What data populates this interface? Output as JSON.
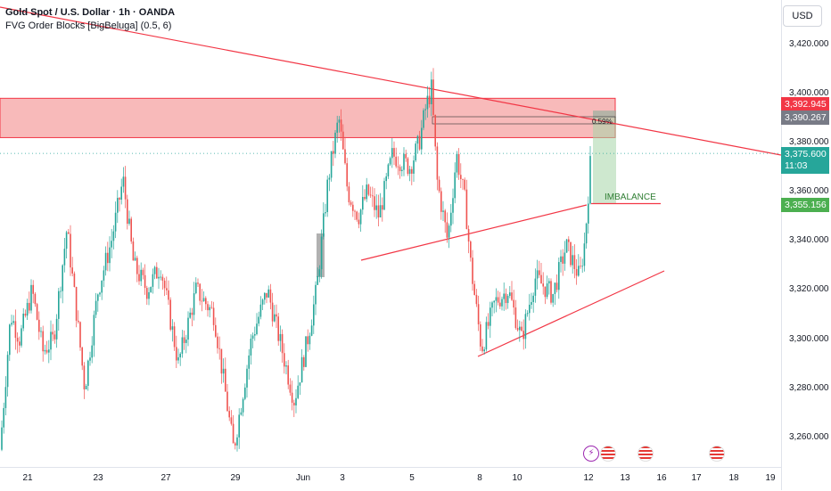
{
  "header": {
    "title": "Gold Spot / U.S. Dollar · 1h · OANDA",
    "indicator": "FVG Order Blocks [BigBeluga] (0.5, 6)"
  },
  "currency_button": "USD",
  "annotations": {
    "imbalance": "IMBALANCE",
    "pct": "0.59%"
  },
  "price_tags": {
    "red": "3,392.945",
    "gray": "3,390.267",
    "last_price": "3,375.600",
    "countdown": "11:03",
    "green": "3,355.156"
  },
  "colors": {
    "up": "#26a69a",
    "down": "#ef5350",
    "zone": "#f5a3a3",
    "tp_zone": "#a5d6a7",
    "trendline": "#f23645"
  },
  "icons": [
    "lightning-icon",
    "us-flag-icon",
    "us-flag-icon",
    "us-flag-icon"
  ],
  "chart_data": {
    "type": "candlestick",
    "title": "Gold Spot / U.S. Dollar · 1h · OANDA",
    "y_ticks": [
      "3,420.000",
      "3,400.000",
      "3,380.000",
      "3,360.000",
      "3,340.000",
      "3,320.000",
      "3,300.000",
      "3,280.000",
      "3,260.000"
    ],
    "x_ticks": [
      "21",
      "23",
      "27",
      "29",
      "Jun",
      "3",
      "5",
      "8",
      "10",
      "12",
      "13",
      "16",
      "17",
      "18",
      "19"
    ],
    "ylim": [
      3248,
      3438
    ],
    "path": [
      [
        0,
        3255
      ],
      [
        12,
        3310
      ],
      [
        22,
        3300
      ],
      [
        36,
        3320
      ],
      [
        48,
        3295
      ],
      [
        60,
        3300
      ],
      [
        75,
        3345
      ],
      [
        86,
        3310
      ],
      [
        95,
        3280
      ],
      [
        110,
        3320
      ],
      [
        125,
        3340
      ],
      [
        138,
        3365
      ],
      [
        150,
        3330
      ],
      [
        165,
        3320
      ],
      [
        180,
        3330
      ],
      [
        200,
        3290
      ],
      [
        220,
        3320
      ],
      [
        240,
        3310
      ],
      [
        262,
        3255
      ],
      [
        282,
        3300
      ],
      [
        300,
        3320
      ],
      [
        320,
        3290
      ],
      [
        330,
        3275
      ],
      [
        345,
        3300
      ],
      [
        355,
        3320
      ],
      [
        368,
        3365
      ],
      [
        380,
        3390
      ],
      [
        390,
        3360
      ],
      [
        402,
        3350
      ],
      [
        412,
        3360
      ],
      [
        425,
        3350
      ],
      [
        440,
        3375
      ],
      [
        460,
        3370
      ],
      [
        470,
        3380
      ],
      [
        478,
        3395
      ],
      [
        484,
        3402
      ],
      [
        490,
        3365
      ],
      [
        502,
        3340
      ],
      [
        512,
        3375
      ],
      [
        522,
        3355
      ],
      [
        528,
        3330
      ],
      [
        540,
        3296
      ],
      [
        555,
        3315
      ],
      [
        570,
        3320
      ],
      [
        585,
        3300
      ],
      [
        600,
        3325
      ],
      [
        620,
        3318
      ],
      [
        635,
        3338
      ],
      [
        650,
        3325
      ],
      [
        656,
        3340
      ],
      [
        663,
        3376
      ]
    ],
    "fvg_zone": [
      3382,
      3398
    ],
    "tp_zone": [
      3355.156,
      3392.945
    ],
    "imbalance_level": 3355.156,
    "last_price": 3375.6,
    "grid": false
  }
}
